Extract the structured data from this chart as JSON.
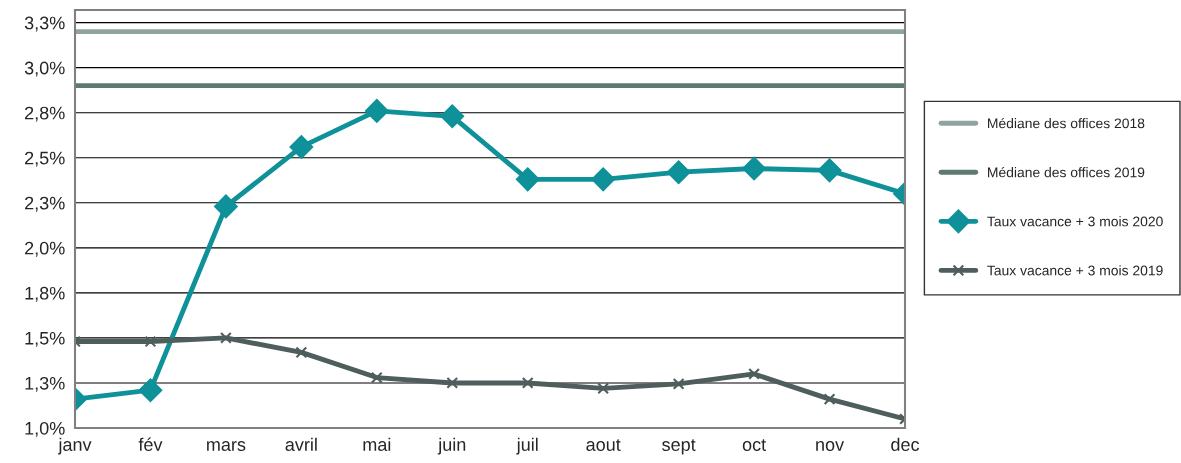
{
  "chart_data": {
    "type": "line",
    "categories": [
      "janv",
      "fév",
      "mars",
      "avril",
      "mai",
      "juin",
      "juil",
      "aout",
      "sept",
      "oct",
      "nov",
      "dec"
    ],
    "series": [
      {
        "name": "Médiane des offices 2018",
        "color": "#8fa3a0",
        "marker": "none",
        "values": [
          3.2,
          3.2,
          3.2,
          3.2,
          3.2,
          3.2,
          3.2,
          3.2,
          3.2,
          3.2,
          3.2,
          3.2
        ]
      },
      {
        "name": "Médiane des offices 2019",
        "color": "#5e7a70",
        "marker": "none",
        "values": [
          2.9,
          2.9,
          2.9,
          2.9,
          2.9,
          2.9,
          2.9,
          2.9,
          2.9,
          2.9,
          2.9,
          2.9
        ]
      },
      {
        "name": "Taux vacance + 3 mois 2020",
        "color": "#0e9199",
        "marker": "diamond",
        "values": [
          1.16,
          1.21,
          2.23,
          2.56,
          2.76,
          2.73,
          2.38,
          2.38,
          2.42,
          2.44,
          2.43,
          2.3
        ]
      },
      {
        "name": "Taux vacance + 3 mois 2019",
        "color": "#4d5e5c",
        "marker": "cross",
        "values": [
          1.48,
          1.48,
          1.5,
          1.42,
          1.28,
          1.25,
          1.25,
          1.22,
          1.245,
          1.3,
          1.16,
          1.05
        ]
      }
    ],
    "ylim": [
      1.0,
      3.32
    ],
    "yticks": [
      {
        "value": 1.0,
        "label": "1,0%"
      },
      {
        "value": 1.25,
        "label": "1,3%"
      },
      {
        "value": 1.5,
        "label": "1,5%"
      },
      {
        "value": 1.75,
        "label": "1,8%"
      },
      {
        "value": 2.0,
        "label": "2,0%"
      },
      {
        "value": 2.25,
        "label": "2,3%"
      },
      {
        "value": 2.5,
        "label": "2,5%"
      },
      {
        "value": 2.75,
        "label": "2,8%"
      },
      {
        "value": 3.0,
        "label": "3,0%"
      },
      {
        "value": 3.25,
        "label": "3,3%"
      }
    ],
    "grid": "y",
    "legend": "right",
    "line_style": "solid"
  }
}
